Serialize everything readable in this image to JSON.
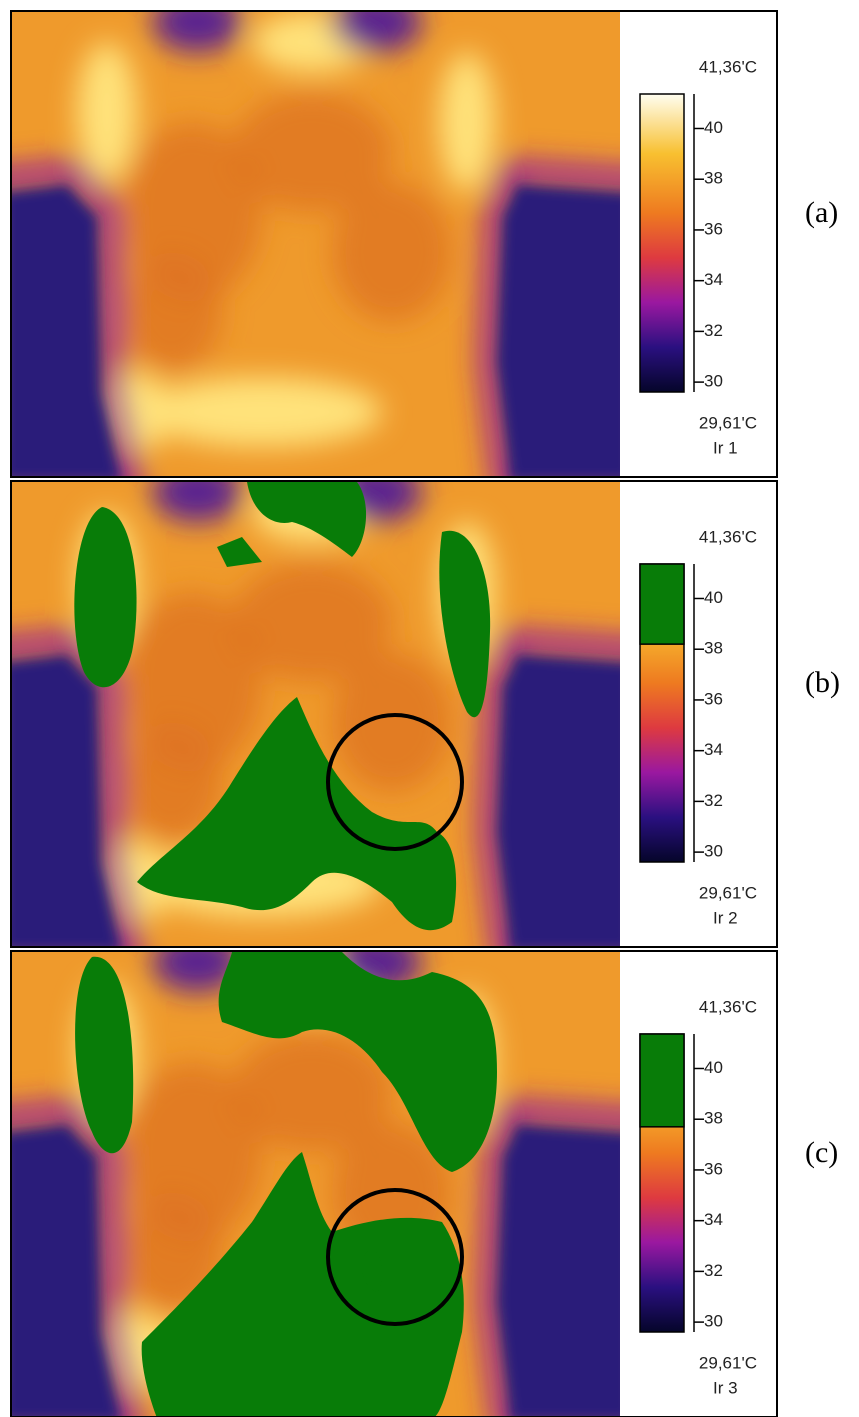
{
  "panels": [
    {
      "label": "(a)",
      "name": "Ir 1",
      "max": {
        "value": 41.36,
        "label": "41,36'C"
      },
      "min": {
        "value": 29.61,
        "label": "29,61'C"
      },
      "ticks": [
        30,
        32,
        34,
        36,
        38,
        40
      ]
    },
    {
      "label": "(b)",
      "name": "Ir 2",
      "max": {
        "value": 41.36,
        "label": "41,36'C"
      },
      "min": {
        "value": 29.61,
        "label": "29,61'C"
      },
      "ticks": [
        30,
        32,
        34,
        36,
        38,
        40
      ],
      "threshold": 38.2
    },
    {
      "label": "(c)",
      "name": "Ir 3",
      "max": {
        "value": 41.36,
        "label": "41,36'C"
      },
      "min": {
        "value": 29.61,
        "label": "29,61'C"
      },
      "ticks": [
        30,
        32,
        34,
        36,
        38,
        40
      ],
      "threshold": 37.7
    }
  ]
}
